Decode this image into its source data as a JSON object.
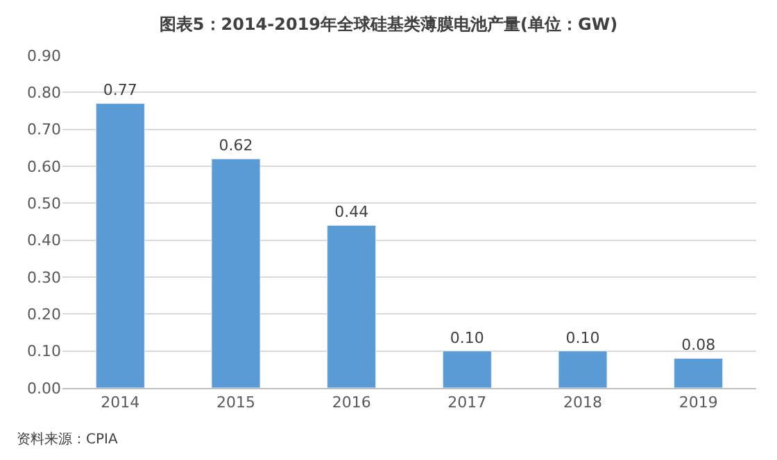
{
  "chart_data": {
    "type": "bar",
    "title": "图表5：2014-2019年全球硅基类薄膜电池产量(单位：GW)",
    "categories": [
      "2014",
      "2015",
      "2016",
      "2017",
      "2018",
      "2019"
    ],
    "values": [
      0.77,
      0.62,
      0.44,
      0.1,
      0.1,
      0.08
    ],
    "value_labels": [
      "0.77",
      "0.62",
      "0.44",
      "0.10",
      "0.10",
      "0.08"
    ],
    "color": "#5b9bd5",
    "ylim": [
      0,
      0.9
    ],
    "yticks": [
      {
        "value": 0,
        "label": "0.00"
      },
      {
        "value": 0.1,
        "label": "0.10"
      },
      {
        "value": 0.2,
        "label": "0.20"
      },
      {
        "value": 0.3,
        "label": "0.30"
      },
      {
        "value": 0.4,
        "label": "0.40"
      },
      {
        "value": 0.5,
        "label": "0.50"
      },
      {
        "value": 0.6,
        "label": "0.60"
      },
      {
        "value": 0.7,
        "label": "0.70"
      },
      {
        "value": 0.8,
        "label": "0.80"
      },
      {
        "value": 0.9,
        "label": "0.90"
      }
    ],
    "grid": "y",
    "annotations": [
      "资料来源：CPIA"
    ]
  }
}
